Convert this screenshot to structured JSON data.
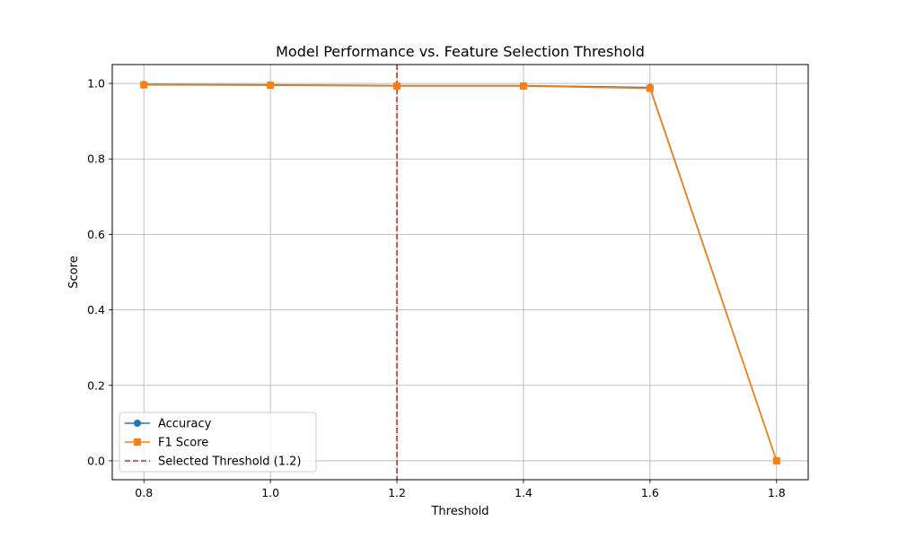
{
  "chart_data": {
    "type": "line",
    "title": "Model Performance vs. Feature Selection Threshold",
    "xlabel": "Threshold",
    "ylabel": "Score",
    "x": [
      0.8,
      1.0,
      1.2,
      1.4,
      1.6,
      1.8
    ],
    "xlim": [
      0.75,
      1.85
    ],
    "ylim": [
      -0.05,
      1.05
    ],
    "xticks": [
      0.8,
      1.0,
      1.2,
      1.4,
      1.6,
      1.8
    ],
    "xtick_labels": [
      "0.8",
      "1.0",
      "1.2",
      "1.4",
      "1.6",
      "1.8"
    ],
    "yticks": [
      0.0,
      0.2,
      0.4,
      0.6,
      0.8,
      1.0
    ],
    "ytick_labels": [
      "0.0",
      "0.2",
      "0.4",
      "0.6",
      "0.8",
      "1.0"
    ],
    "grid": true,
    "legend_position": "lower-left",
    "series": [
      {
        "name": "Accuracy",
        "values": [
          0.997,
          0.996,
          0.994,
          0.994,
          0.989,
          0.0
        ],
        "color": "#1f77b4",
        "marker": "circle"
      },
      {
        "name": "F1 Score",
        "values": [
          0.996,
          0.995,
          0.993,
          0.993,
          0.987,
          0.0
        ],
        "color": "#ff7f0e",
        "marker": "square"
      }
    ],
    "reference_line": {
      "name": "Selected Threshold (1.2)",
      "x": 1.2,
      "color": "#d62728",
      "style": "dashed"
    }
  }
}
